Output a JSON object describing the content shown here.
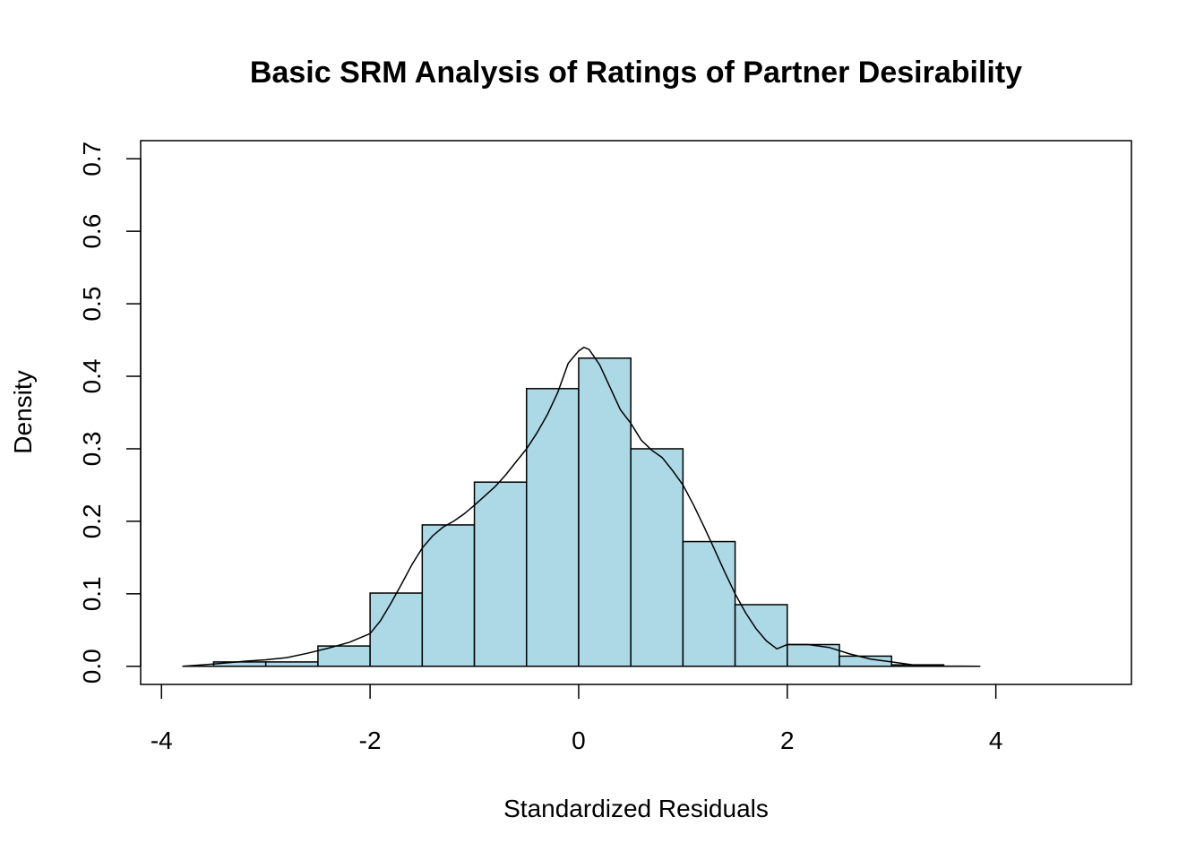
{
  "chart_data": {
    "type": "bar",
    "title": "Basic SRM Analysis of Ratings of Partner Desirability",
    "xlabel": "Standardized Residuals",
    "ylabel": "Density",
    "xlim": [
      -4.2,
      5.3
    ],
    "ylim": [
      -0.025,
      0.725
    ],
    "x_ticks": [
      -4,
      -2,
      0,
      2,
      4
    ],
    "x_tick_labels": [
      "-4",
      "-2",
      "0",
      "2",
      "4"
    ],
    "y_ticks": [
      0.0,
      0.1,
      0.2,
      0.3,
      0.4,
      0.5,
      0.6,
      0.7
    ],
    "y_tick_labels": [
      "0.0",
      "0.1",
      "0.2",
      "0.3",
      "0.4",
      "0.5",
      "0.6",
      "0.7"
    ],
    "bar_color": "#ADD8E6",
    "grid": false,
    "bins": [
      {
        "x0": -3.5,
        "x1": -3.0,
        "value": 0.006
      },
      {
        "x0": -3.0,
        "x1": -2.5,
        "value": 0.006
      },
      {
        "x0": -2.5,
        "x1": -2.0,
        "value": 0.028
      },
      {
        "x0": -2.0,
        "x1": -1.5,
        "value": 0.101
      },
      {
        "x0": -1.5,
        "x1": -1.0,
        "value": 0.195
      },
      {
        "x0": -1.0,
        "x1": -0.5,
        "value": 0.254
      },
      {
        "x0": -0.5,
        "x1": 0.0,
        "value": 0.383
      },
      {
        "x0": 0.0,
        "x1": 0.5,
        "value": 0.425
      },
      {
        "x0": 0.5,
        "x1": 1.0,
        "value": 0.3
      },
      {
        "x0": 1.0,
        "x1": 1.5,
        "value": 0.172
      },
      {
        "x0": 1.5,
        "x1": 2.0,
        "value": 0.085
      },
      {
        "x0": 2.0,
        "x1": 2.5,
        "value": 0.03
      },
      {
        "x0": 2.5,
        "x1": 3.0,
        "value": 0.014
      },
      {
        "x0": 3.0,
        "x1": 3.5,
        "value": 0.002
      }
    ],
    "density_curve": {
      "x": [
        -3.8,
        -3.5,
        -3.2,
        -3.0,
        -2.8,
        -2.6,
        -2.4,
        -2.2,
        -2.0,
        -1.9,
        -1.8,
        -1.7,
        -1.6,
        -1.5,
        -1.4,
        -1.3,
        -1.2,
        -1.1,
        -1.0,
        -0.9,
        -0.8,
        -0.7,
        -0.6,
        -0.5,
        -0.4,
        -0.3,
        -0.2,
        -0.1,
        0.0,
        0.05,
        0.1,
        0.2,
        0.3,
        0.4,
        0.5,
        0.6,
        0.7,
        0.8,
        0.9,
        1.0,
        1.1,
        1.2,
        1.3,
        1.4,
        1.5,
        1.6,
        1.7,
        1.8,
        1.9,
        2.0,
        2.2,
        2.4,
        2.6,
        2.8,
        3.0,
        3.2,
        3.5,
        3.85
      ],
      "y": [
        0.0,
        0.003,
        0.007,
        0.009,
        0.012,
        0.018,
        0.025,
        0.033,
        0.045,
        0.063,
        0.087,
        0.113,
        0.14,
        0.163,
        0.18,
        0.192,
        0.2,
        0.21,
        0.222,
        0.235,
        0.248,
        0.264,
        0.282,
        0.3,
        0.322,
        0.347,
        0.378,
        0.418,
        0.435,
        0.44,
        0.437,
        0.416,
        0.385,
        0.354,
        0.335,
        0.312,
        0.298,
        0.288,
        0.27,
        0.25,
        0.223,
        0.193,
        0.162,
        0.13,
        0.1,
        0.074,
        0.052,
        0.035,
        0.024,
        0.03,
        0.03,
        0.026,
        0.017,
        0.01,
        0.006,
        0.002,
        0.0003,
        0.0
      ]
    }
  }
}
